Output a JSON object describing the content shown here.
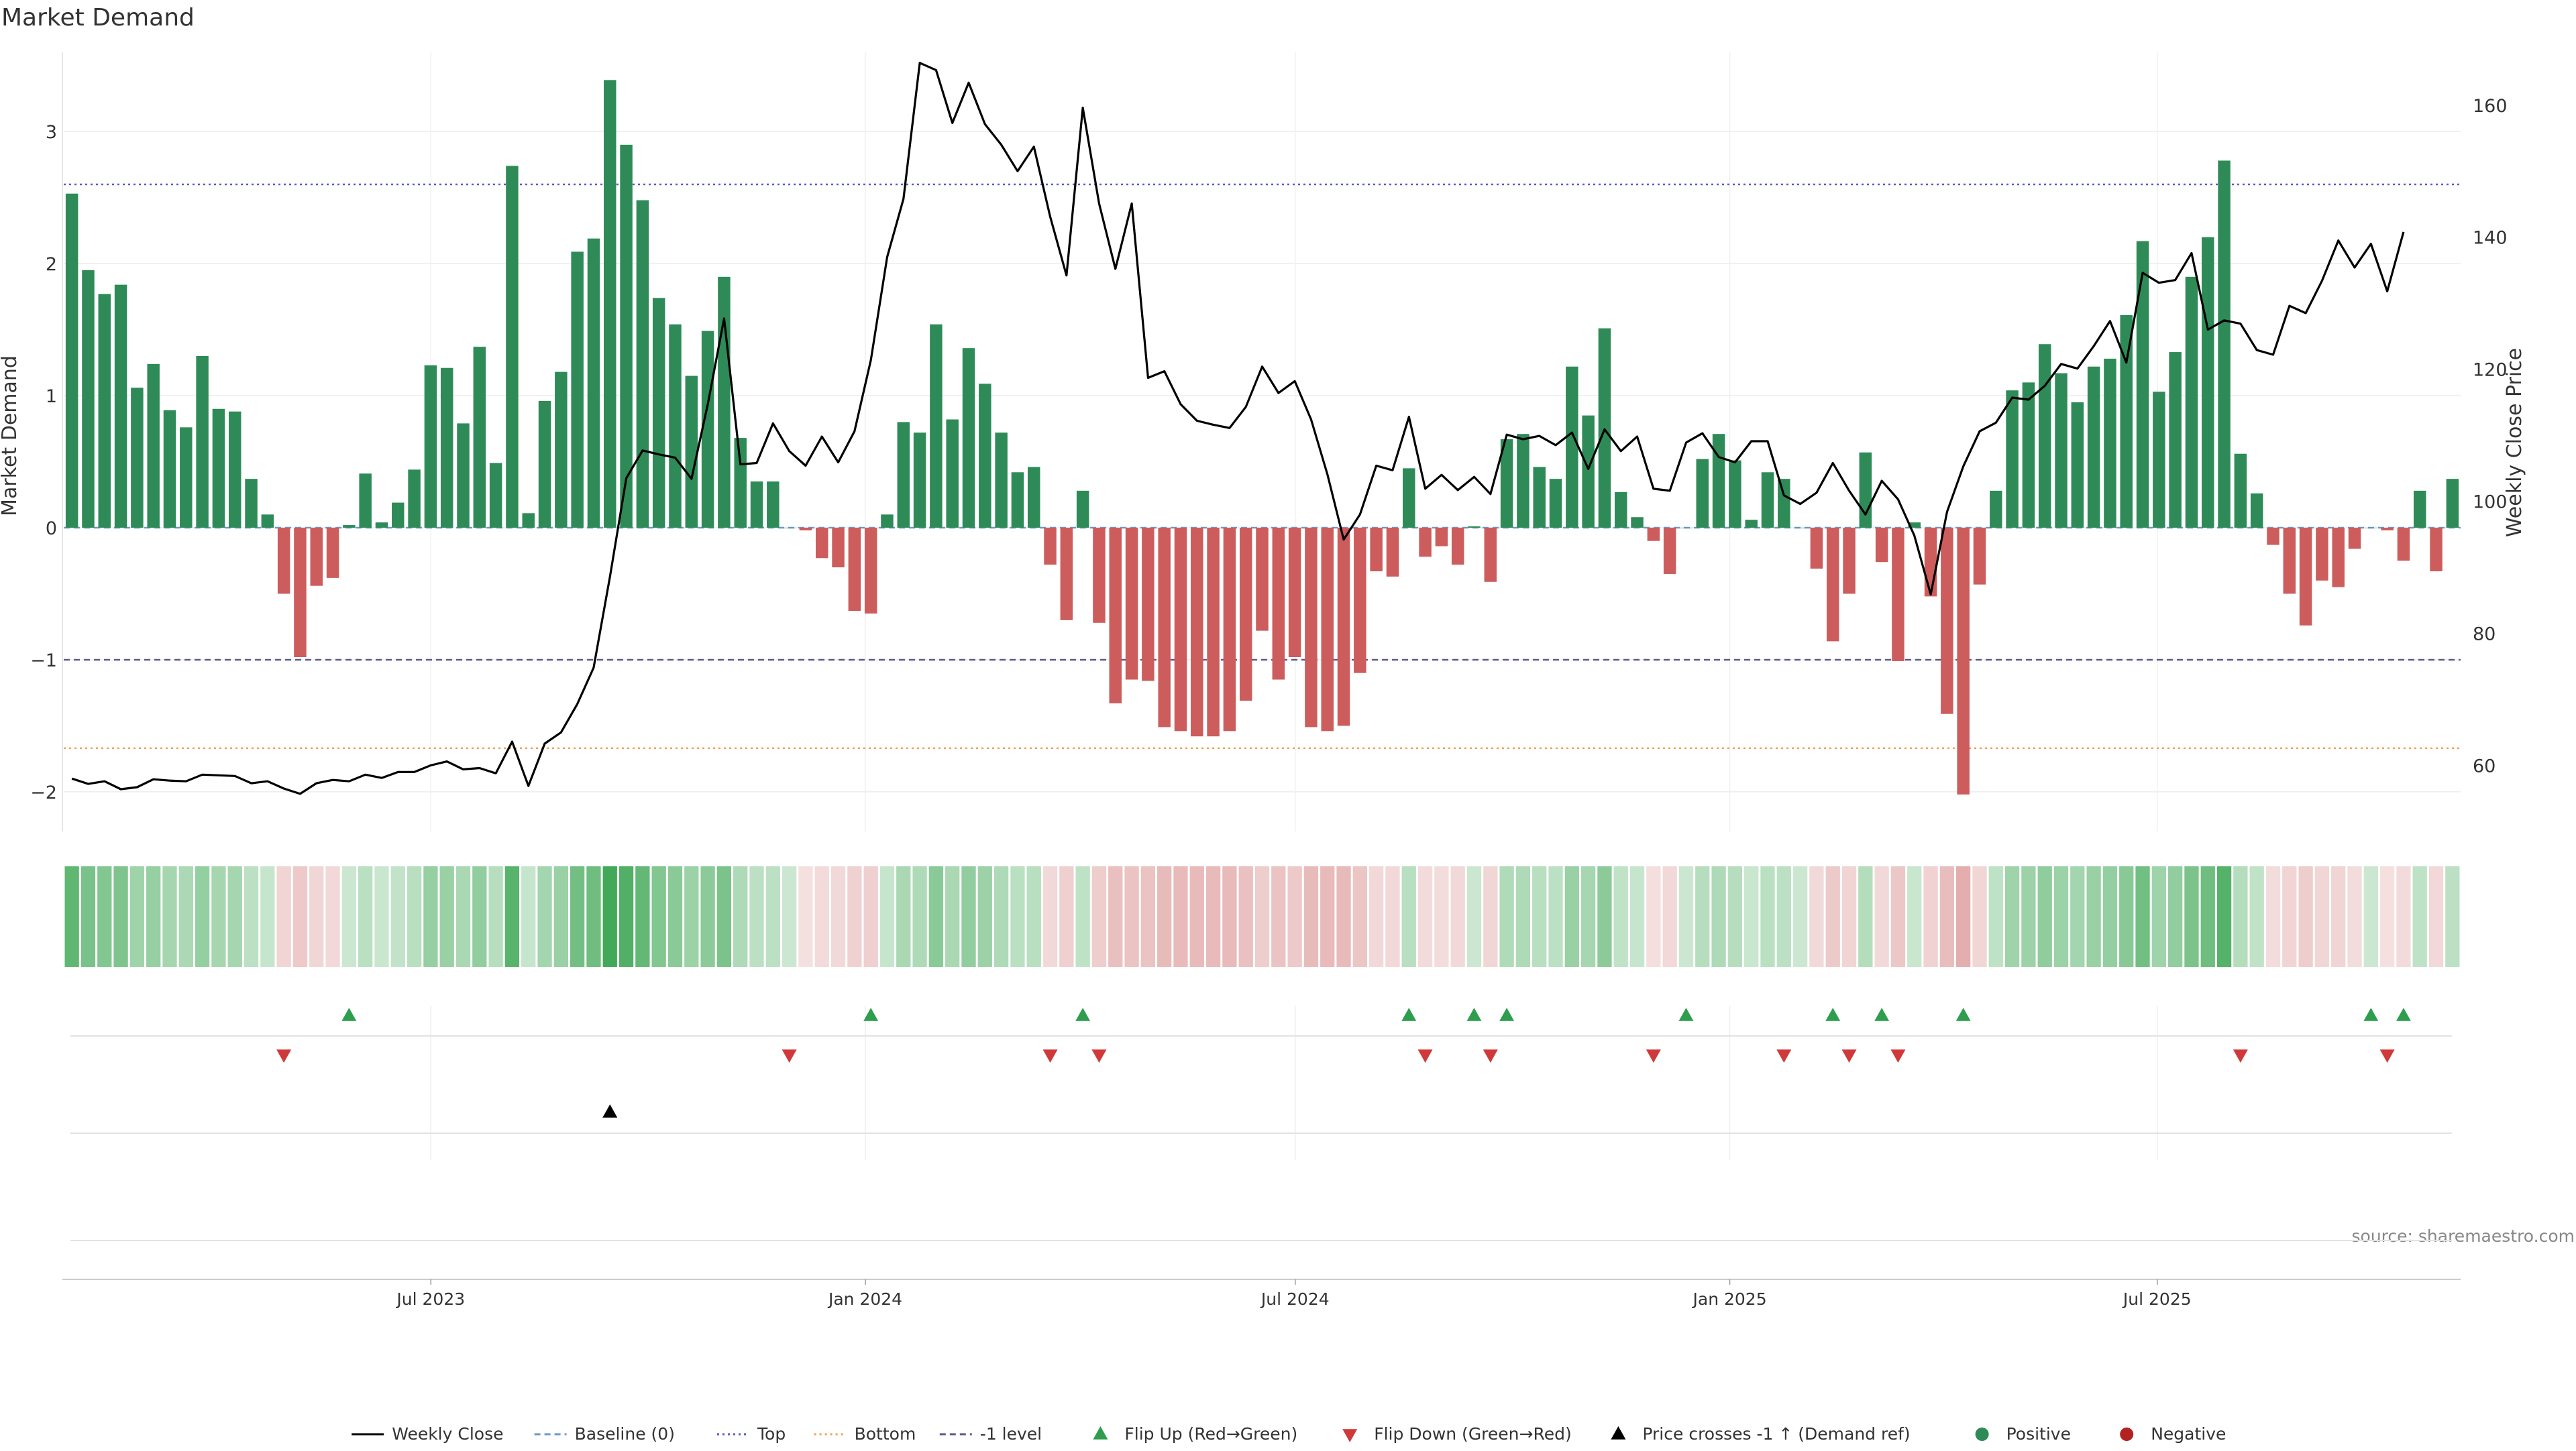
{
  "chart_data": {
    "type": "bar",
    "title": "Market Demand",
    "ylabel": "Market Demand",
    "ylabel_right": "Weekly Close Price",
    "ylim": [
      -2.3,
      3.6
    ],
    "ylim_right": [
      50,
      168
    ],
    "yticks": [
      -2,
      -1,
      0,
      1,
      2,
      3
    ],
    "ytick_labels": [
      "−2",
      "−1",
      "0",
      "1",
      "2",
      "3"
    ],
    "yticks_right": [
      60,
      80,
      100,
      120,
      140,
      160
    ],
    "date_range": [
      "2023-01-30",
      "2025-11-03"
    ],
    "x_ticks": [
      {
        "date": "2023-07-01",
        "label": "Jul 2023"
      },
      {
        "date": "2024-01-01",
        "label": "Jan 2024"
      },
      {
        "date": "2024-07-01",
        "label": "Jul 2024"
      },
      {
        "date": "2025-01-01",
        "label": "Jan 2025"
      },
      {
        "date": "2025-07-01",
        "label": "Jul 2025"
      }
    ],
    "reference_lines": [
      {
        "name": "Top",
        "value": 2.6,
        "color": "#5a5ac8",
        "style": "dotted"
      },
      {
        "name": "-1 level",
        "value": -1,
        "color": "#5a5a8c",
        "style": "dashed"
      },
      {
        "name": "Bottom",
        "value": -1.67,
        "color": "#f0a050",
        "style": "dotted"
      },
      {
        "name": "Baseline (0)",
        "value": 0,
        "color": "#6a9ac8",
        "style": "dashed"
      }
    ],
    "series": [
      {
        "name": "Market Demand",
        "type": "bar",
        "values": [
          2.53,
          1.95,
          1.77,
          1.84,
          1.06,
          1.24,
          0.89,
          0.76,
          1.3,
          0.9,
          0.88,
          0.37,
          0.1,
          -0.5,
          -0.98,
          -0.44,
          -0.38,
          0.02,
          0.41,
          0.04,
          0.19,
          0.44,
          1.23,
          1.21,
          0.79,
          1.37,
          0.49,
          2.74,
          0.11,
          0.96,
          1.18,
          2.09,
          2.19,
          3.39,
          2.9,
          2.48,
          1.74,
          1.54,
          1.15,
          1.49,
          1.9,
          0.68,
          0.35,
          0.35,
          0.0,
          -0.02,
          -0.23,
          -0.3,
          -0.63,
          -0.65,
          0.1,
          0.8,
          0.72,
          1.54,
          0.82,
          1.36,
          1.09,
          0.72,
          0.42,
          0.46,
          -0.28,
          -0.7,
          0.28,
          -0.72,
          -1.33,
          -1.15,
          -1.16,
          -1.51,
          -1.54,
          -1.58,
          -1.58,
          -1.54,
          -1.31,
          -0.78,
          -1.15,
          -0.98,
          -1.51,
          -1.54,
          -1.5,
          -1.1,
          -0.33,
          -0.37,
          0.45,
          -0.22,
          -0.14,
          -0.28,
          0.01,
          -0.41,
          0.67,
          0.71,
          0.46,
          0.37,
          1.22,
          0.85,
          1.51,
          0.27,
          0.08,
          -0.1,
          -0.35,
          0.0,
          0.52,
          0.71,
          0.51,
          0.06,
          0.42,
          0.37,
          0.0,
          -0.31,
          -0.86,
          -0.5,
          0.57,
          -0.26,
          -1.01,
          0.04,
          -0.52,
          -1.41,
          -2.02,
          -0.43,
          0.28,
          1.04,
          1.1,
          1.39,
          1.17,
          0.95,
          1.22,
          1.28,
          1.61,
          2.17,
          1.03,
          1.33,
          1.9,
          2.2,
          2.78,
          0.56,
          0.26,
          -0.13,
          -0.5,
          -0.74,
          -0.4,
          -0.45,
          -0.16,
          0.0,
          -0.02,
          -0.25,
          0.28,
          -0.33,
          0.37
        ]
      },
      {
        "name": "Weekly Close",
        "type": "line",
        "color": "#000000",
        "values": [
          58,
          57.2,
          57.6,
          56.4,
          56.7,
          57.9,
          57.7,
          57.6,
          58.6,
          58.5,
          58.4,
          57.3,
          57.6,
          56.5,
          55.7,
          57.3,
          57.8,
          57.6,
          58.6,
          58.1,
          59.0,
          59.0,
          60.0,
          60.6,
          59.4,
          59.6,
          58.8,
          63.6,
          56.9,
          63.3,
          65.0,
          69.3,
          74.8,
          88.6,
          103.5,
          107.7,
          107.1,
          106.6,
          103.4,
          114.7,
          127.7,
          105.6,
          105.8,
          111.8,
          107.6,
          105.4,
          109.8,
          105.9,
          110.6,
          121.4,
          137.0,
          145.8,
          166.4,
          165.3,
          157.3,
          163.4,
          157.1,
          154.0,
          150.0,
          153.7,
          143.1,
          134.2,
          159.6,
          145.1,
          135.2,
          145.1,
          118.7,
          119.7,
          114.7,
          112.2,
          111.6,
          111.1,
          114.3,
          120.4,
          116.4,
          118.2,
          112.4,
          104.1,
          94.2,
          98.0,
          105.4,
          104.7,
          112.8,
          101.9,
          104.0,
          101.7,
          103.7,
          101.1,
          110.1,
          109.4,
          109.9,
          108.5,
          110.4,
          104.9,
          110.9,
          107.6,
          109.8,
          101.9,
          101.6,
          108.9,
          110.3,
          106.7,
          105.9,
          109.1,
          109.1,
          100.9,
          99.6,
          101.3,
          105.8,
          101.6,
          98.0,
          103.1,
          100.3,
          94.8,
          85.9,
          98.4,
          105.3,
          110.6,
          111.9,
          115.7,
          115.4,
          117.5,
          120.8,
          120.1,
          123.5,
          127.3,
          121.0,
          134.6,
          133.1,
          133.5,
          137.6,
          126.0,
          127.4,
          126.9,
          122.9,
          122.2,
          129.6,
          128.5,
          133.4,
          139.5,
          135.4,
          139.0,
          131.8,
          140.8
        ]
      }
    ],
    "strip_label": "",
    "flip_up_indices": [
      17,
      49,
      62,
      82,
      86,
      88,
      99,
      108,
      111,
      116,
      141,
      143
    ],
    "flip_down_indices": [
      13,
      44,
      60,
      63,
      83,
      87,
      97,
      105,
      109,
      112,
      133,
      142
    ],
    "price_cross_indices": [
      33
    ],
    "legend": {
      "placement": "bottom",
      "items": [
        {
          "label": "Weekly Close",
          "kind": "line-solid",
          "color": "#000000"
        },
        {
          "label": "Baseline (0)",
          "kind": "line-dashed",
          "color": "#6a9ac8"
        },
        {
          "label": "Top",
          "kind": "line-dotted",
          "color": "#5a5ac8"
        },
        {
          "label": "Bottom",
          "kind": "line-dotted",
          "color": "#f0a050"
        },
        {
          "label": "-1 level",
          "kind": "line-dashed",
          "color": "#5a5a8c"
        },
        {
          "label": "Flip Up (Red→Green)",
          "kind": "triangle-up",
          "color": "#2e9e4e"
        },
        {
          "label": "Flip Down (Green→Red)",
          "kind": "triangle-down",
          "color": "#d0393a"
        },
        {
          "label": "Price crosses -1 ↑ (Demand ref)",
          "kind": "triangle-up",
          "color": "#000000"
        },
        {
          "label": "Positive",
          "kind": "dot",
          "color": "#2e8b57"
        },
        {
          "label": "Negative",
          "kind": "dot",
          "color": "#b22222"
        }
      ]
    },
    "colors": {
      "positive": "#2e8b57",
      "negative": "#cd5c5c"
    }
  },
  "source_text": "source: sharemaestro.com"
}
